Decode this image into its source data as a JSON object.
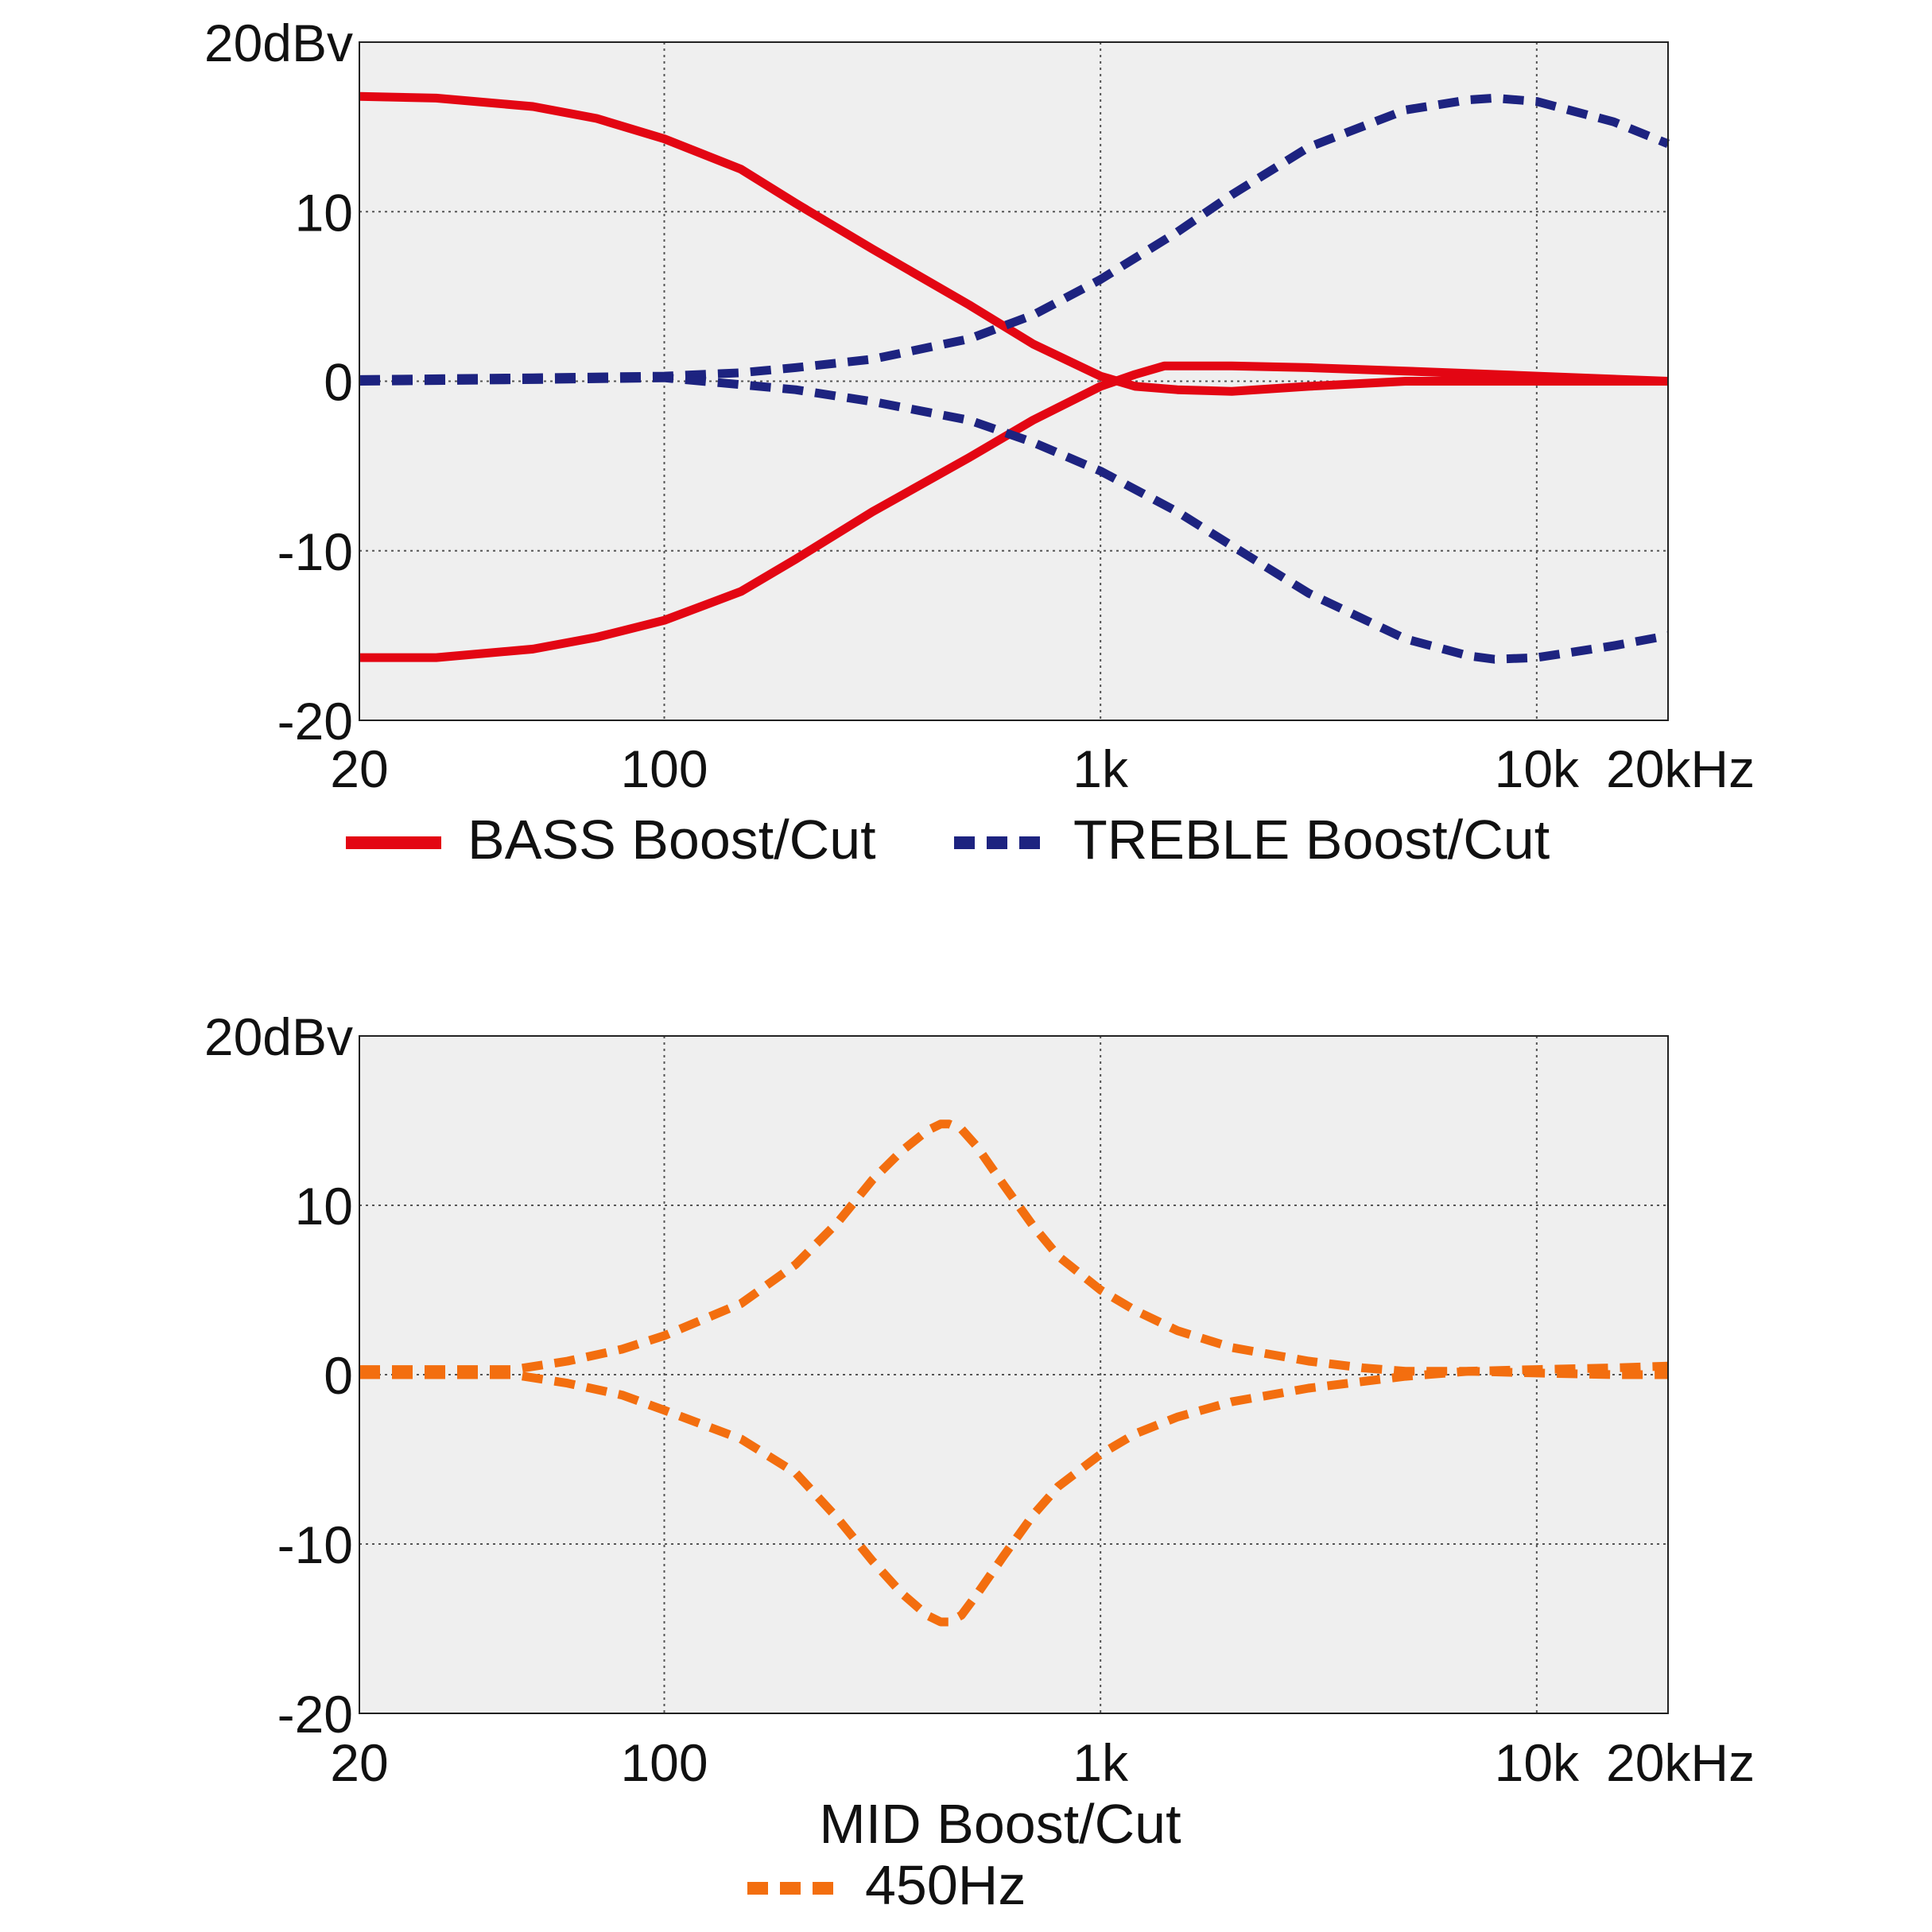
{
  "chart_data": [
    {
      "type": "line",
      "x_scale": "log",
      "xlim": [
        20,
        20000
      ],
      "ylim": [
        -20,
        20
      ],
      "grid": true,
      "x_ticks": [
        {
          "value": 20,
          "label": "20"
        },
        {
          "value": 100,
          "label": "100"
        },
        {
          "value": 1000,
          "label": "1k"
        },
        {
          "value": 10000,
          "label": "10k"
        },
        {
          "value": 20000,
          "label": "20kHz"
        }
      ],
      "y_ticks": [
        {
          "value": 20,
          "label": "20dBv"
        },
        {
          "value": 10,
          "label": "10"
        },
        {
          "value": 0,
          "label": "0"
        },
        {
          "value": -10,
          "label": "-10"
        },
        {
          "value": -20,
          "label": "-20"
        }
      ],
      "caption": "",
      "legend_position": "bottom",
      "series": [
        {
          "name": "BASS Boost/Cut",
          "legend": true,
          "color": "#e30613",
          "style": "solid",
          "x": [
            20,
            30,
            50,
            70,
            100,
            150,
            200,
            300,
            500,
            700,
            1000,
            1200,
            1500,
            2000,
            3000,
            5000,
            10000,
            20000
          ],
          "y": [
            16.8,
            16.7,
            16.2,
            15.5,
            14.3,
            12.5,
            10.5,
            7.8,
            4.5,
            2.2,
            0.3,
            -0.3,
            -0.5,
            -0.6,
            -0.3,
            0.0,
            0.0,
            0.0
          ]
        },
        {
          "name": "BASS Boost/Cut",
          "legend": false,
          "color": "#e30613",
          "style": "solid",
          "x": [
            20,
            30,
            50,
            70,
            100,
            150,
            200,
            300,
            500,
            700,
            1000,
            1200,
            1400,
            2000,
            3000,
            5000,
            10000,
            20000
          ],
          "y": [
            -16.3,
            -16.3,
            -15.8,
            -15.1,
            -14.1,
            -12.4,
            -10.5,
            -7.7,
            -4.5,
            -2.3,
            -0.3,
            0.4,
            0.9,
            0.9,
            0.8,
            0.6,
            0.3,
            0.0
          ]
        },
        {
          "name": "TREBLE Boost/Cut",
          "legend": true,
          "color": "#1d2380",
          "style": "dashed",
          "x": [
            20,
            50,
            100,
            150,
            200,
            300,
            500,
            700,
            1000,
            1500,
            2000,
            3000,
            5000,
            7000,
            8000,
            10000,
            15000,
            20000
          ],
          "y": [
            0.1,
            0.2,
            0.3,
            0.5,
            0.8,
            1.3,
            2.5,
            3.9,
            6.0,
            8.8,
            11.0,
            13.8,
            16.0,
            16.6,
            16.7,
            16.5,
            15.3,
            14.0
          ]
        },
        {
          "name": "TREBLE Boost/Cut",
          "legend": false,
          "color": "#1d2380",
          "style": "dashed",
          "x": [
            20,
            50,
            100,
            150,
            200,
            300,
            500,
            700,
            1000,
            1500,
            2000,
            3000,
            5000,
            7000,
            8000,
            10000,
            15000,
            20000
          ],
          "y": [
            0.0,
            0.1,
            0.2,
            -0.2,
            -0.5,
            -1.2,
            -2.3,
            -3.6,
            -5.3,
            -7.7,
            -9.7,
            -12.5,
            -15.2,
            -16.2,
            -16.4,
            -16.3,
            -15.6,
            -15.0
          ]
        }
      ]
    },
    {
      "type": "line",
      "x_scale": "log",
      "xlim": [
        20,
        20000
      ],
      "ylim": [
        -20,
        20
      ],
      "grid": true,
      "x_ticks": [
        {
          "value": 20,
          "label": "20"
        },
        {
          "value": 100,
          "label": "100"
        },
        {
          "value": 1000,
          "label": "1k"
        },
        {
          "value": 10000,
          "label": "10k"
        },
        {
          "value": 20000,
          "label": "20kHz"
        }
      ],
      "y_ticks": [
        {
          "value": 20,
          "label": "20dBv"
        },
        {
          "value": 10,
          "label": "10"
        },
        {
          "value": 0,
          "label": "0"
        },
        {
          "value": -10,
          "label": "-10"
        },
        {
          "value": -20,
          "label": "-20"
        }
      ],
      "caption": "MID Boost/Cut",
      "legend_position": "bottom",
      "series": [
        {
          "name": "450Hz",
          "legend": true,
          "color": "#f36e0f",
          "style": "dashed",
          "x": [
            20,
            30,
            45,
            60,
            80,
            100,
            150,
            200,
            250,
            300,
            350,
            400,
            430,
            450,
            480,
            520,
            600,
            700,
            800,
            1000,
            1200,
            1500,
            2000,
            3000,
            4000,
            5000,
            7000,
            10000,
            15000,
            20000
          ],
          "y": [
            0.3,
            0.3,
            0.3,
            0.8,
            1.5,
            2.3,
            4.2,
            6.5,
            9.0,
            11.5,
            13.2,
            14.4,
            14.8,
            14.8,
            14.5,
            13.5,
            11.2,
            8.8,
            7.0,
            5.0,
            3.8,
            2.6,
            1.6,
            0.8,
            0.4,
            0.2,
            0.2,
            0.1,
            0.0,
            0.0
          ]
        },
        {
          "name": "450Hz",
          "legend": false,
          "color": "#f36e0f",
          "style": "dashed",
          "x": [
            20,
            30,
            45,
            60,
            80,
            100,
            150,
            200,
            250,
            300,
            350,
            400,
            430,
            450,
            480,
            520,
            600,
            700,
            800,
            1000,
            1200,
            1500,
            2000,
            3000,
            4000,
            5000,
            7000,
            10000,
            15000,
            20000
          ],
          "y": [
            0.0,
            0.0,
            0.0,
            -0.5,
            -1.2,
            -2.1,
            -3.8,
            -5.8,
            -8.5,
            -11.0,
            -12.9,
            -14.2,
            -14.6,
            -14.6,
            -14.2,
            -13.0,
            -10.7,
            -8.3,
            -6.6,
            -4.7,
            -3.5,
            -2.5,
            -1.6,
            -0.8,
            -0.4,
            -0.1,
            0.2,
            0.3,
            0.4,
            0.5
          ]
        }
      ]
    }
  ]
}
